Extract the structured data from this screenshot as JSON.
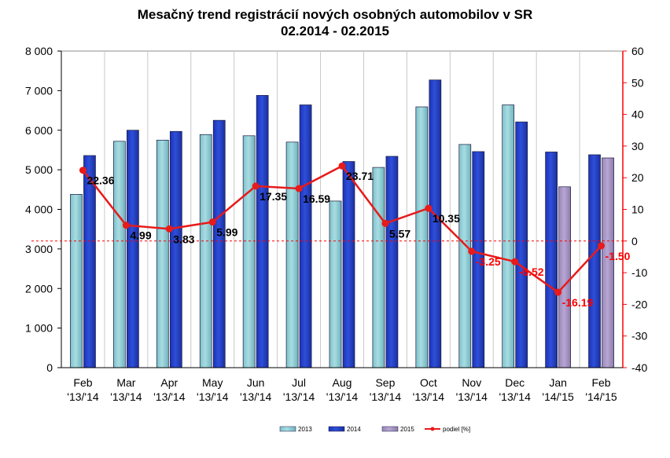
{
  "chart_data": {
    "type": "bar",
    "title_line1": "Mesačný trend registrácií nových osobných automobilov v SR",
    "title_line2": "02.2014 - 02.2015",
    "categories": [
      {
        "month": "Feb",
        "period": "'13/'14"
      },
      {
        "month": "Mar",
        "period": "'13/'14"
      },
      {
        "month": "Apr",
        "period": "'13/'14"
      },
      {
        "month": "May",
        "period": "'13/'14"
      },
      {
        "month": "Jun",
        "period": "'13/'14"
      },
      {
        "month": "Jul",
        "period": "'13/'14"
      },
      {
        "month": "Aug",
        "period": "'13/'14"
      },
      {
        "month": "Sep",
        "period": "'13/'14"
      },
      {
        "month": "Oct",
        "period": "'13/'14"
      },
      {
        "month": "Nov",
        "period": "'13/'14"
      },
      {
        "month": "Dec",
        "period": "'13/'14"
      },
      {
        "month": "Jan",
        "period": "'14/'15"
      },
      {
        "month": "Feb",
        "period": "'14/'15"
      }
    ],
    "bars": [
      [
        {
          "series": "2013",
          "value": 4380
        },
        {
          "series": "2014",
          "value": 5360
        }
      ],
      [
        {
          "series": "2013",
          "value": 5720
        },
        {
          "series": "2014",
          "value": 6000
        }
      ],
      [
        {
          "series": "2013",
          "value": 5750
        },
        {
          "series": "2014",
          "value": 5970
        }
      ],
      [
        {
          "series": "2013",
          "value": 5890
        },
        {
          "series": "2014",
          "value": 6250
        }
      ],
      [
        {
          "series": "2013",
          "value": 5860
        },
        {
          "series": "2014",
          "value": 6880
        }
      ],
      [
        {
          "series": "2013",
          "value": 5700
        },
        {
          "series": "2014",
          "value": 6640
        }
      ],
      [
        {
          "series": "2013",
          "value": 4210
        },
        {
          "series": "2014",
          "value": 5210
        }
      ],
      [
        {
          "series": "2013",
          "value": 5060
        },
        {
          "series": "2014",
          "value": 5340
        }
      ],
      [
        {
          "series": "2013",
          "value": 6590
        },
        {
          "series": "2014",
          "value": 7270
        }
      ],
      [
        {
          "series": "2013",
          "value": 5640
        },
        {
          "series": "2014",
          "value": 5460
        }
      ],
      [
        {
          "series": "2013",
          "value": 6640
        },
        {
          "series": "2014",
          "value": 6210
        }
      ],
      [
        {
          "series": "2014",
          "value": 5450
        },
        {
          "series": "2015",
          "value": 4570
        }
      ],
      [
        {
          "series": "2014",
          "value": 5380
        },
        {
          "series": "2015",
          "value": 5300
        }
      ]
    ],
    "share_line": {
      "values": [
        22.36,
        4.99,
        3.83,
        5.99,
        17.35,
        16.59,
        23.71,
        5.57,
        10.35,
        -3.25,
        -6.52,
        -16.19,
        -1.5
      ],
      "labels": [
        "22.36",
        "4.99",
        "3.83",
        "5.99",
        "17.35",
        "16.59",
        "23.71",
        "5.57",
        "10.35",
        "-3.25",
        "-6.52",
        "-16.19",
        "-1.50"
      ],
      "label_colors": [
        "#000000",
        "#000000",
        "#000000",
        "#000000",
        "#000000",
        "#000000",
        "#000000",
        "#000000",
        "#000000",
        "#ff0000",
        "#ff0000",
        "#ff0000",
        "#ff0000"
      ]
    },
    "y_left": {
      "min": 0,
      "max": 8000,
      "ticks": [
        0,
        1000,
        2000,
        3000,
        4000,
        5000,
        6000,
        7000,
        8000
      ],
      "tick_labels": [
        "0",
        "1 000",
        "2 000",
        "3 000",
        "4 000",
        "5 000",
        "6 000",
        "7 000",
        "8 000"
      ]
    },
    "y_right": {
      "min": -40,
      "max": 60,
      "ticks": [
        -40,
        -30,
        -20,
        -10,
        0,
        10,
        20,
        30,
        40,
        50,
        60
      ],
      "tick_labels": [
        "-40",
        "-30",
        "-20",
        "-10",
        "0",
        "10",
        "20",
        "30",
        "40",
        "50",
        "60"
      ]
    },
    "grid": "vertical",
    "legend": {
      "placement": "bottom",
      "items": [
        {
          "key": "2013",
          "label": "2013",
          "kind": "bar"
        },
        {
          "key": "2014",
          "label": "2014",
          "kind": "bar"
        },
        {
          "key": "2015",
          "label": "2015",
          "kind": "bar"
        },
        {
          "key": "share",
          "label": "podiel [%]",
          "kind": "line"
        }
      ]
    },
    "colors": {
      "2013": "#a8dce2",
      "2014": "#2f4fd9",
      "2015": "#b7a6d1",
      "share": "#e81a1a",
      "zero_line": "#ff0000",
      "right_axis": "#ff0000",
      "grid": "#c8c8c8"
    }
  }
}
